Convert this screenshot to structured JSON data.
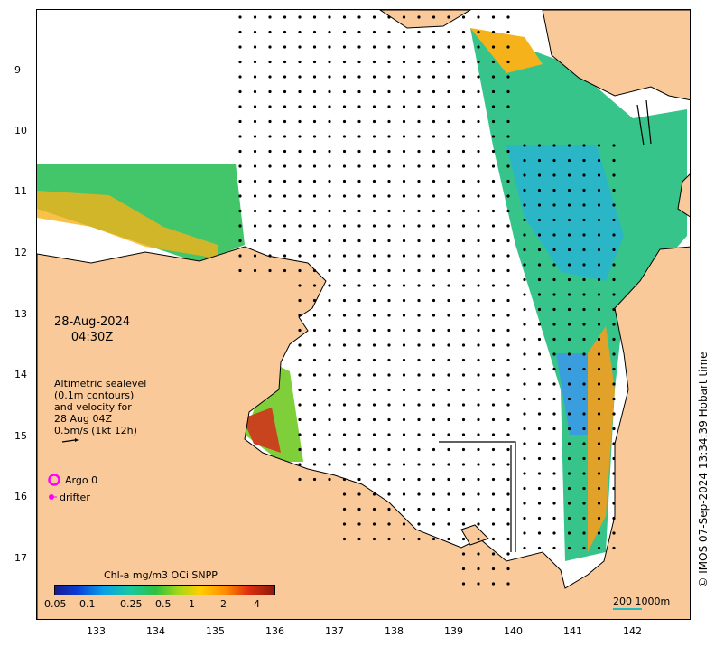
{
  "map": {
    "date": "28-Aug-2024",
    "time": "04:30Z",
    "legend_lines": [
      "Altimetric sealevel",
      "(0.1m contours)",
      "and velocity for",
      "28 Aug 04Z",
      "0.5m/s (1kt 12h)"
    ],
    "argo_label": "Argo 0",
    "drifter_label": "drifter",
    "copyright": "© IMOS 07-Sep-2024 13:34:39 Hobart time",
    "colorbar_title": "Chl-a mg/m3 OCi SNPP",
    "colorbar_ticks": [
      "0.05",
      "0.1",
      "0.25",
      "0.5",
      "1",
      "2",
      "4"
    ],
    "scale_label": "200 1000m",
    "lat_ticks": [
      "9",
      "10",
      "11",
      "12",
      "13",
      "14",
      "15",
      "16",
      "17"
    ],
    "lon_ticks": [
      "133",
      "134",
      "135",
      "136",
      "137",
      "138",
      "139",
      "140",
      "141",
      "142"
    ],
    "colors": {
      "land": "#f9c99a",
      "argo": "#ff00ff",
      "drifter": "#ff00ff"
    }
  }
}
